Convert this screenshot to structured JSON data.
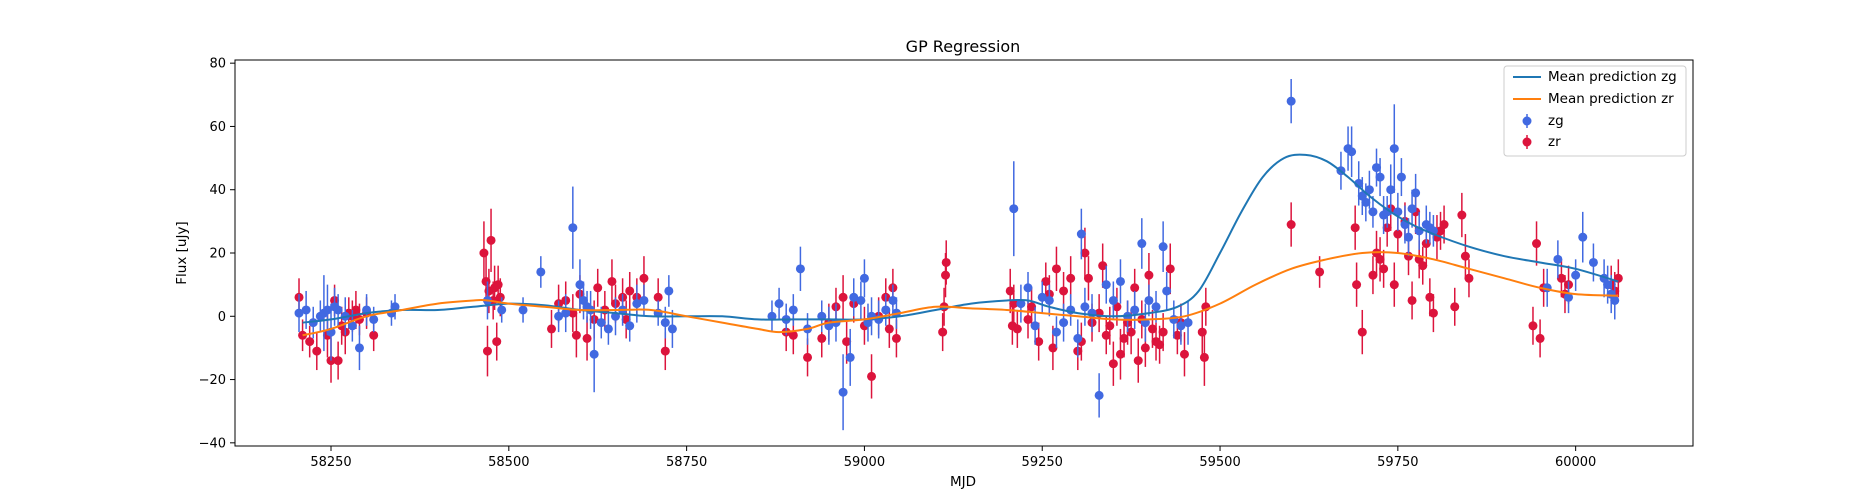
{
  "chart_data": {
    "type": "scatter",
    "title": "GP Regression",
    "xlabel": "MJD",
    "ylabel": "Flux [uJy]",
    "xlim": [
      58115,
      60165
    ],
    "ylim": [
      -41,
      81
    ],
    "xticks": [
      58250,
      58500,
      58750,
      59000,
      59250,
      59500,
      59750,
      60000
    ],
    "yticks": [
      -40,
      -20,
      0,
      20,
      40,
      60,
      80
    ],
    "legend_position": "top-right",
    "colors": {
      "zg_line": "#1f77b4",
      "zr_line": "#ff7f0e",
      "zg_points": "#4169e1",
      "zr_points": "#dc143c"
    },
    "legend": [
      {
        "label": "Mean prediction zg",
        "kind": "line",
        "color": "#1f77b4"
      },
      {
        "label": "Mean prediction zr",
        "kind": "line",
        "color": "#ff7f0e"
      },
      {
        "label": "zg",
        "kind": "errorbar",
        "color": "#4169e1"
      },
      {
        "label": "zr",
        "kind": "errorbar",
        "color": "#dc143c"
      }
    ],
    "mean_prediction_zg": [
      [
        58210,
        -2
      ],
      [
        58250,
        -1
      ],
      [
        58300,
        1
      ],
      [
        58350,
        2
      ],
      [
        58400,
        2
      ],
      [
        58450,
        3
      ],
      [
        58500,
        4
      ],
      [
        58550,
        3.5
      ],
      [
        58600,
        2
      ],
      [
        58650,
        1
      ],
      [
        58700,
        0
      ],
      [
        58750,
        0
      ],
      [
        58800,
        0
      ],
      [
        58850,
        -1
      ],
      [
        58900,
        -1
      ],
      [
        58950,
        -1
      ],
      [
        59000,
        -1
      ],
      [
        59050,
        0
      ],
      [
        59100,
        2
      ],
      [
        59150,
        4
      ],
      [
        59200,
        5
      ],
      [
        59230,
        5
      ],
      [
        59260,
        3
      ],
      [
        59300,
        1
      ],
      [
        59350,
        0
      ],
      [
        59400,
        1
      ],
      [
        59440,
        3
      ],
      [
        59470,
        8
      ],
      [
        59500,
        20
      ],
      [
        59530,
        33
      ],
      [
        59560,
        44
      ],
      [
        59590,
        50
      ],
      [
        59620,
        51
      ],
      [
        59650,
        49
      ],
      [
        59680,
        44
      ],
      [
        59710,
        38
      ],
      [
        59740,
        33
      ],
      [
        59770,
        29
      ],
      [
        59800,
        26
      ],
      [
        59850,
        22
      ],
      [
        59900,
        19
      ],
      [
        59950,
        17
      ],
      [
        60000,
        15
      ],
      [
        60060,
        11
      ]
    ],
    "mean_prediction_zr": [
      [
        58210,
        -6
      ],
      [
        58250,
        -4
      ],
      [
        58300,
        0
      ],
      [
        58350,
        2
      ],
      [
        58400,
        4
      ],
      [
        58450,
        5
      ],
      [
        58470,
        5
      ],
      [
        58500,
        4
      ],
      [
        58550,
        3
      ],
      [
        58600,
        2
      ],
      [
        58650,
        2
      ],
      [
        58700,
        2
      ],
      [
        58750,
        0
      ],
      [
        58800,
        -2
      ],
      [
        58850,
        -4
      ],
      [
        58880,
        -5
      ],
      [
        58920,
        -4
      ],
      [
        58950,
        -2
      ],
      [
        59000,
        -1
      ],
      [
        59050,
        1
      ],
      [
        59100,
        3
      ],
      [
        59150,
        2.5
      ],
      [
        59200,
        2
      ],
      [
        59250,
        1
      ],
      [
        59300,
        0
      ],
      [
        59350,
        -1
      ],
      [
        59400,
        -1
      ],
      [
        59450,
        0
      ],
      [
        59500,
        4
      ],
      [
        59550,
        10
      ],
      [
        59600,
        15
      ],
      [
        59650,
        18
      ],
      [
        59700,
        20
      ],
      [
        59750,
        20
      ],
      [
        59800,
        18
      ],
      [
        59850,
        15
      ],
      [
        59900,
        12
      ],
      [
        59950,
        9
      ],
      [
        60000,
        7
      ],
      [
        60060,
        6.5
      ]
    ],
    "zg": [
      [
        58205,
        1,
        6
      ],
      [
        58215,
        2,
        6
      ],
      [
        58225,
        -2,
        5
      ],
      [
        58235,
        0,
        5
      ],
      [
        58240,
        1,
        12
      ],
      [
        58245,
        2,
        8
      ],
      [
        58250,
        -5,
        9
      ],
      [
        58255,
        3,
        6
      ],
      [
        58260,
        2,
        5
      ],
      [
        58270,
        0,
        6
      ],
      [
        58280,
        -3,
        5
      ],
      [
        58290,
        -10,
        7
      ],
      [
        58300,
        2,
        5
      ],
      [
        58310,
        -1,
        4
      ],
      [
        58335,
        1,
        4
      ],
      [
        58340,
        3,
        4
      ],
      [
        58470,
        5,
        6
      ],
      [
        58490,
        2,
        4
      ],
      [
        58520,
        2,
        4
      ],
      [
        58545,
        14,
        5
      ],
      [
        58570,
        0,
        5
      ],
      [
        58580,
        1,
        6
      ],
      [
        58590,
        28,
        13
      ],
      [
        58600,
        10,
        8
      ],
      [
        58605,
        5,
        6
      ],
      [
        58610,
        3,
        5
      ],
      [
        58615,
        2,
        6
      ],
      [
        58620,
        -12,
        12
      ],
      [
        58630,
        -2,
        5
      ],
      [
        58640,
        -4,
        5
      ],
      [
        58650,
        0,
        6
      ],
      [
        58660,
        2,
        5
      ],
      [
        58670,
        -3,
        5
      ],
      [
        58680,
        4,
        6
      ],
      [
        58690,
        5,
        5
      ],
      [
        58710,
        1,
        4
      ],
      [
        58720,
        -2,
        5
      ],
      [
        58725,
        8,
        5
      ],
      [
        58730,
        -4,
        6
      ],
      [
        58870,
        0,
        5
      ],
      [
        58880,
        4,
        5
      ],
      [
        58890,
        -1,
        5
      ],
      [
        58900,
        2,
        5
      ],
      [
        58910,
        15,
        7
      ],
      [
        58920,
        -4,
        5
      ],
      [
        58940,
        0,
        5
      ],
      [
        58950,
        -3,
        6
      ],
      [
        58960,
        -2,
        6
      ],
      [
        58970,
        -24,
        12
      ],
      [
        58980,
        -13,
        9
      ],
      [
        58985,
        6,
        6
      ],
      [
        58995,
        5,
        6
      ],
      [
        59000,
        12,
        6
      ],
      [
        59005,
        -2,
        6
      ],
      [
        59010,
        0,
        6
      ],
      [
        59020,
        -1,
        6
      ],
      [
        59030,
        2,
        5
      ],
      [
        59040,
        5,
        5
      ],
      [
        59045,
        1,
        5
      ],
      [
        59210,
        34,
        15
      ],
      [
        59220,
        4,
        6
      ],
      [
        59230,
        9,
        5
      ],
      [
        59240,
        -3,
        6
      ],
      [
        59250,
        6,
        5
      ],
      [
        59260,
        5,
        5
      ],
      [
        59270,
        -5,
        5
      ],
      [
        59280,
        -2,
        6
      ],
      [
        59290,
        2,
        5
      ],
      [
        59300,
        -7,
        6
      ],
      [
        59305,
        26,
        8
      ],
      [
        59310,
        3,
        6
      ],
      [
        59320,
        1,
        6
      ],
      [
        59330,
        -25,
        7
      ],
      [
        59340,
        10,
        6
      ],
      [
        59350,
        5,
        6
      ],
      [
        59360,
        11,
        7
      ],
      [
        59370,
        0,
        5
      ],
      [
        59380,
        2,
        6
      ],
      [
        59390,
        23,
        8
      ],
      [
        59395,
        -2,
        6
      ],
      [
        59400,
        5,
        5
      ],
      [
        59410,
        3,
        5
      ],
      [
        59420,
        22,
        8
      ],
      [
        59425,
        8,
        6
      ],
      [
        59435,
        -1,
        6
      ],
      [
        59445,
        -3,
        6
      ],
      [
        59455,
        -2,
        7
      ],
      [
        59600,
        68,
        7
      ],
      [
        59670,
        46,
        6
      ],
      [
        59680,
        53,
        7
      ],
      [
        59685,
        52,
        8
      ],
      [
        59695,
        42,
        7
      ],
      [
        59700,
        38,
        6
      ],
      [
        59705,
        36,
        6
      ],
      [
        59710,
        40,
        6
      ],
      [
        59715,
        33,
        5
      ],
      [
        59720,
        47,
        6
      ],
      [
        59725,
        44,
        6
      ],
      [
        59730,
        32,
        6
      ],
      [
        59735,
        33,
        5
      ],
      [
        59740,
        40,
        8
      ],
      [
        59745,
        53,
        14
      ],
      [
        59750,
        33,
        6
      ],
      [
        59755,
        44,
        6
      ],
      [
        59760,
        29,
        6
      ],
      [
        59765,
        25,
        6
      ],
      [
        59770,
        34,
        6
      ],
      [
        59775,
        39,
        6
      ],
      [
        59780,
        27,
        6
      ],
      [
        59790,
        29,
        6
      ],
      [
        59795,
        28,
        5
      ],
      [
        59800,
        27,
        5
      ],
      [
        59960,
        9,
        6
      ],
      [
        59975,
        18,
        6
      ],
      [
        59990,
        6,
        5
      ],
      [
        60000,
        13,
        5
      ],
      [
        60010,
        25,
        8
      ],
      [
        60025,
        17,
        6
      ],
      [
        60040,
        12,
        6
      ],
      [
        60045,
        10,
        6
      ],
      [
        60050,
        7,
        6
      ],
      [
        60055,
        5,
        6
      ]
    ],
    "zr": [
      [
        58205,
        6,
        6
      ],
      [
        58210,
        -6,
        5
      ],
      [
        58220,
        -8,
        5
      ],
      [
        58230,
        -11,
        6
      ],
      [
        58245,
        -6,
        7
      ],
      [
        58250,
        -14,
        7
      ],
      [
        58255,
        5,
        5
      ],
      [
        58260,
        -14,
        6
      ],
      [
        58265,
        -3,
        6
      ],
      [
        58270,
        -5,
        7
      ],
      [
        58275,
        1,
        5
      ],
      [
        58280,
        0,
        5
      ],
      [
        58285,
        2,
        6
      ],
      [
        58290,
        -1,
        5
      ],
      [
        58300,
        1,
        5
      ],
      [
        58310,
        -6,
        5
      ],
      [
        58465,
        20,
        10
      ],
      [
        58468,
        11,
        8
      ],
      [
        58470,
        -11,
        8
      ],
      [
        58472,
        8,
        7
      ],
      [
        58475,
        24,
        10
      ],
      [
        58478,
        5,
        6
      ],
      [
        58480,
        9,
        7
      ],
      [
        58483,
        -8,
        6
      ],
      [
        58485,
        10,
        6
      ],
      [
        58488,
        6,
        6
      ],
      [
        58560,
        -4,
        6
      ],
      [
        58570,
        4,
        6
      ],
      [
        58580,
        5,
        6
      ],
      [
        58590,
        1,
        6
      ],
      [
        58595,
        -6,
        7
      ],
      [
        58600,
        7,
        6
      ],
      [
        58610,
        -7,
        7
      ],
      [
        58620,
        -1,
        6
      ],
      [
        58625,
        9,
        6
      ],
      [
        58635,
        2,
        6
      ],
      [
        58645,
        11,
        7
      ],
      [
        58650,
        4,
        6
      ],
      [
        58660,
        6,
        6
      ],
      [
        58665,
        -1,
        6
      ],
      [
        58670,
        8,
        6
      ],
      [
        58680,
        6,
        6
      ],
      [
        58690,
        12,
        7
      ],
      [
        58710,
        6,
        6
      ],
      [
        58720,
        -11,
        6
      ],
      [
        58890,
        -5,
        6
      ],
      [
        58900,
        -6,
        6
      ],
      [
        58920,
        -13,
        6
      ],
      [
        58940,
        -7,
        6
      ],
      [
        58950,
        -2,
        6
      ],
      [
        58960,
        3,
        6
      ],
      [
        58970,
        6,
        7
      ],
      [
        58975,
        -8,
        7
      ],
      [
        58985,
        4,
        6
      ],
      [
        59000,
        -3,
        6
      ],
      [
        59010,
        -19,
        7
      ],
      [
        59020,
        0,
        6
      ],
      [
        59030,
        6,
        6
      ],
      [
        59035,
        -4,
        6
      ],
      [
        59040,
        9,
        6
      ],
      [
        59045,
        -7,
        6
      ],
      [
        59110,
        -5,
        6
      ],
      [
        59112,
        3,
        6
      ],
      [
        59114,
        13,
        7
      ],
      [
        59115,
        17,
        7
      ],
      [
        59205,
        8,
        7
      ],
      [
        59208,
        -3,
        6
      ],
      [
        59210,
        4,
        6
      ],
      [
        59215,
        -4,
        6
      ],
      [
        59230,
        -1,
        6
      ],
      [
        59235,
        3,
        6
      ],
      [
        59245,
        -8,
        6
      ],
      [
        59255,
        11,
        6
      ],
      [
        59260,
        7,
        6
      ],
      [
        59265,
        -10,
        7
      ],
      [
        59270,
        15,
        7
      ],
      [
        59280,
        8,
        6
      ],
      [
        59290,
        12,
        7
      ],
      [
        59300,
        -11,
        6
      ],
      [
        59305,
        -8,
        6
      ],
      [
        59310,
        20,
        8
      ],
      [
        59315,
        12,
        7
      ],
      [
        59320,
        -2,
        6
      ],
      [
        59330,
        1,
        6
      ],
      [
        59335,
        16,
        7
      ],
      [
        59340,
        -6,
        6
      ],
      [
        59345,
        -3,
        6
      ],
      [
        59350,
        -15,
        7
      ],
      [
        59355,
        3,
        6
      ],
      [
        59360,
        -12,
        8
      ],
      [
        59365,
        -7,
        6
      ],
      [
        59370,
        -2,
        7
      ],
      [
        59375,
        -5,
        7
      ],
      [
        59380,
        9,
        6
      ],
      [
        59385,
        -14,
        7
      ],
      [
        59390,
        -1,
        6
      ],
      [
        59395,
        -10,
        6
      ],
      [
        59400,
        13,
        7
      ],
      [
        59405,
        -4,
        6
      ],
      [
        59410,
        -8,
        6
      ],
      [
        59415,
        -9,
        6
      ],
      [
        59420,
        -5,
        6
      ],
      [
        59430,
        15,
        8
      ],
      [
        59440,
        -6,
        6
      ],
      [
        59445,
        -2,
        6
      ],
      [
        59450,
        -12,
        7
      ],
      [
        59475,
        -5,
        7
      ],
      [
        59478,
        -13,
        9
      ],
      [
        59480,
        3,
        6
      ],
      [
        59600,
        29,
        7
      ],
      [
        59640,
        14,
        5
      ],
      [
        59690,
        28,
        7
      ],
      [
        59692,
        10,
        7
      ],
      [
        59700,
        -5,
        7
      ],
      [
        59715,
        13,
        6
      ],
      [
        59720,
        20,
        7
      ],
      [
        59725,
        18,
        7
      ],
      [
        59730,
        15,
        6
      ],
      [
        59735,
        28,
        6
      ],
      [
        59740,
        34,
        7
      ],
      [
        59745,
        10,
        7
      ],
      [
        59750,
        26,
        6
      ],
      [
        59760,
        30,
        6
      ],
      [
        59765,
        19,
        6
      ],
      [
        59770,
        5,
        6
      ],
      [
        59775,
        33,
        7
      ],
      [
        59780,
        18,
        6
      ],
      [
        59785,
        16,
        6
      ],
      [
        59790,
        23,
        7
      ],
      [
        59795,
        6,
        6
      ],
      [
        59800,
        1,
        6
      ],
      [
        59805,
        25,
        7
      ],
      [
        59810,
        27,
        6
      ],
      [
        59815,
        29,
        6
      ],
      [
        59830,
        3,
        6
      ],
      [
        59840,
        32,
        7
      ],
      [
        59845,
        19,
        7
      ],
      [
        59850,
        12,
        6
      ],
      [
        59940,
        -3,
        6
      ],
      [
        59945,
        23,
        7
      ],
      [
        59950,
        -7,
        6
      ],
      [
        59955,
        9,
        6
      ],
      [
        59980,
        12,
        6
      ],
      [
        59985,
        7,
        6
      ],
      [
        59990,
        10,
        6
      ],
      [
        60050,
        10,
        6
      ],
      [
        60055,
        8,
        6
      ],
      [
        60060,
        12,
        6
      ]
    ]
  }
}
